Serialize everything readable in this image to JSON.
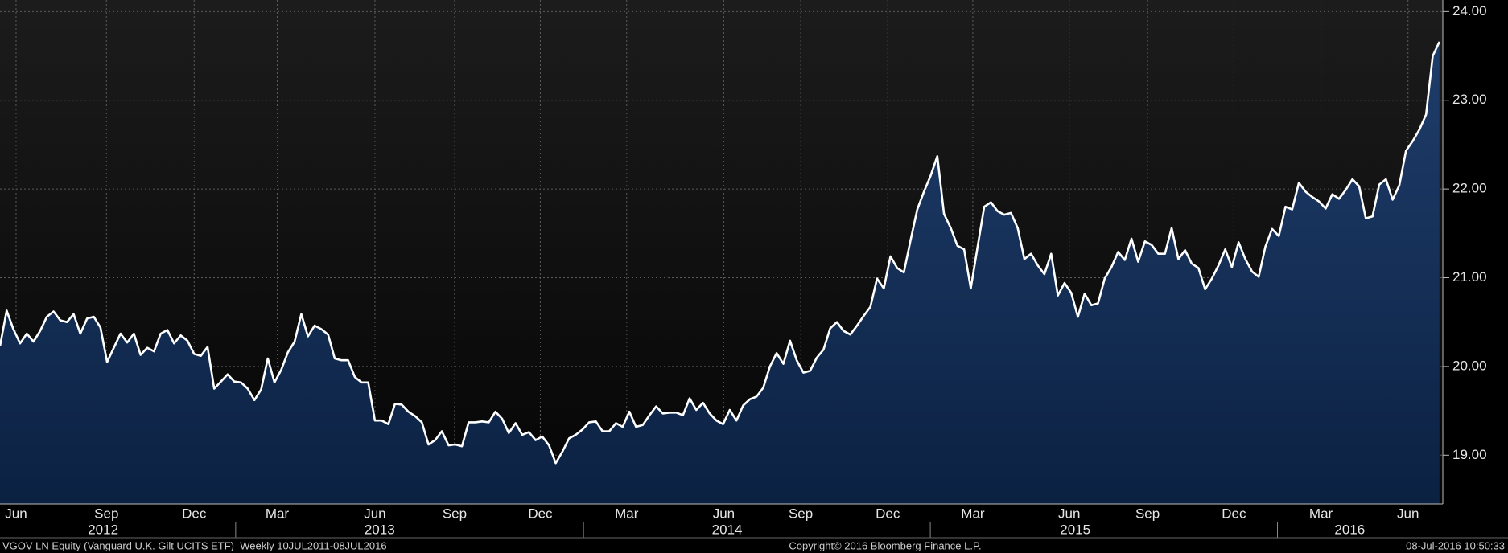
{
  "chart_data": {
    "type": "area-line",
    "values": [
      20.23,
      20.63,
      20.42,
      20.26,
      20.37,
      20.28,
      20.4,
      20.56,
      20.62,
      20.52,
      20.5,
      20.59,
      20.37,
      20.54,
      20.56,
      20.44,
      20.05,
      20.21,
      20.37,
      20.27,
      20.37,
      20.13,
      20.21,
      20.17,
      20.37,
      20.41,
      20.26,
      20.35,
      20.29,
      20.14,
      20.12,
      20.22,
      19.75,
      19.83,
      19.91,
      19.83,
      19.82,
      19.75,
      19.62,
      19.74,
      20.09,
      19.82,
      19.96,
      20.16,
      20.28,
      20.59,
      20.34,
      20.46,
      20.42,
      20.36,
      20.09,
      20.07,
      20.07,
      19.88,
      19.82,
      19.82,
      19.39,
      19.39,
      19.35,
      19.58,
      19.57,
      19.49,
      19.44,
      19.37,
      19.12,
      19.17,
      19.27,
      19.11,
      19.12,
      19.1,
      19.37,
      19.37,
      19.38,
      19.37,
      19.49,
      19.41,
      19.25,
      19.36,
      19.23,
      19.26,
      19.17,
      19.21,
      19.11,
      18.91,
      19.04,
      19.19,
      19.23,
      19.29,
      19.37,
      19.38,
      19.27,
      19.27,
      19.36,
      19.32,
      19.49,
      19.32,
      19.34,
      19.45,
      19.55,
      19.47,
      19.48,
      19.48,
      19.45,
      19.64,
      19.51,
      19.59,
      19.47,
      19.39,
      19.35,
      19.51,
      19.39,
      19.56,
      19.63,
      19.66,
      19.76,
      20.0,
      20.15,
      20.03,
      20.29,
      20.07,
      19.93,
      19.95,
      20.1,
      20.19,
      20.43,
      20.5,
      20.4,
      20.36,
      20.46,
      20.57,
      20.67,
      20.99,
      20.88,
      21.24,
      21.11,
      21.06,
      21.42,
      21.77,
      21.97,
      22.15,
      22.37,
      21.72,
      21.56,
      21.36,
      21.32,
      20.88,
      21.34,
      21.8,
      21.85,
      21.75,
      21.71,
      21.73,
      21.56,
      21.21,
      21.27,
      21.14,
      21.04,
      21.27,
      20.8,
      20.94,
      20.83,
      20.56,
      20.82,
      20.69,
      20.71,
      20.99,
      21.12,
      21.29,
      21.2,
      21.44,
      21.18,
      21.41,
      21.37,
      21.27,
      21.27,
      21.56,
      21.21,
      21.31,
      21.16,
      21.11,
      20.87,
      20.99,
      21.14,
      21.32,
      21.12,
      21.4,
      21.21,
      21.07,
      21.01,
      21.35,
      21.55,
      21.47,
      21.8,
      21.77,
      22.07,
      21.97,
      21.91,
      21.86,
      21.78,
      21.94,
      21.89,
      21.99,
      22.11,
      22.03,
      21.67,
      21.69,
      22.05,
      22.11,
      21.88,
      22.04,
      22.43,
      22.54,
      22.67,
      22.84,
      23.5,
      23.66
    ],
    "color": "#ffffff",
    "fill_top": "#1f3d6b",
    "fill_bottom": "#0b2142",
    "xlim": [
      0,
      215.5
    ],
    "xticks": [
      {
        "value": 2.4,
        "label": "Jun"
      },
      {
        "value": 15.9,
        "label": "Sep"
      },
      {
        "value": 29,
        "label": "Dec"
      },
      {
        "value": 41.4,
        "label": "Mar"
      },
      {
        "value": 56,
        "label": "Jun"
      },
      {
        "value": 67.9,
        "label": "Sep"
      },
      {
        "value": 80.7,
        "label": "Dec"
      },
      {
        "value": 93.6,
        "label": "Mar"
      },
      {
        "value": 108.1,
        "label": "Jun"
      },
      {
        "value": 119.6,
        "label": "Sep"
      },
      {
        "value": 132.6,
        "label": "Dec"
      },
      {
        "value": 145.3,
        "label": "Mar"
      },
      {
        "value": 159.7,
        "label": "Jun"
      },
      {
        "value": 171.4,
        "label": "Sep"
      },
      {
        "value": 184.3,
        "label": "Dec"
      },
      {
        "value": 197.3,
        "label": "Mar"
      },
      {
        "value": 210.3,
        "label": "Jun"
      }
    ],
    "year_labels": [
      {
        "value": 15.4,
        "label": "2012"
      },
      {
        "value": 56.7,
        "label": "2013"
      },
      {
        "value": 108.6,
        "label": "2014"
      },
      {
        "value": 160.6,
        "label": "2015"
      },
      {
        "value": 201.6,
        "label": "2016"
      }
    ],
    "ylim": [
      18.45,
      24.13
    ],
    "yticks": [
      {
        "value": 19,
        "label": "19.00"
      },
      {
        "value": 20,
        "label": "20.00"
      },
      {
        "value": 21,
        "label": "21.00"
      },
      {
        "value": 22,
        "label": "22.00"
      },
      {
        "value": 23,
        "label": "23.00"
      },
      {
        "value": 24,
        "label": "24.00"
      }
    ],
    "grid": true,
    "footer_left": "VGOV LN Equity (Vanguard U.K. Gilt UCITS ETF)  Weekly 10JUL2011-08JUL2016",
    "footer_center": "Copyright© 2016 Bloomberg Finance L.P.",
    "footer_right": "08-Jul-2016 10:50:33"
  }
}
